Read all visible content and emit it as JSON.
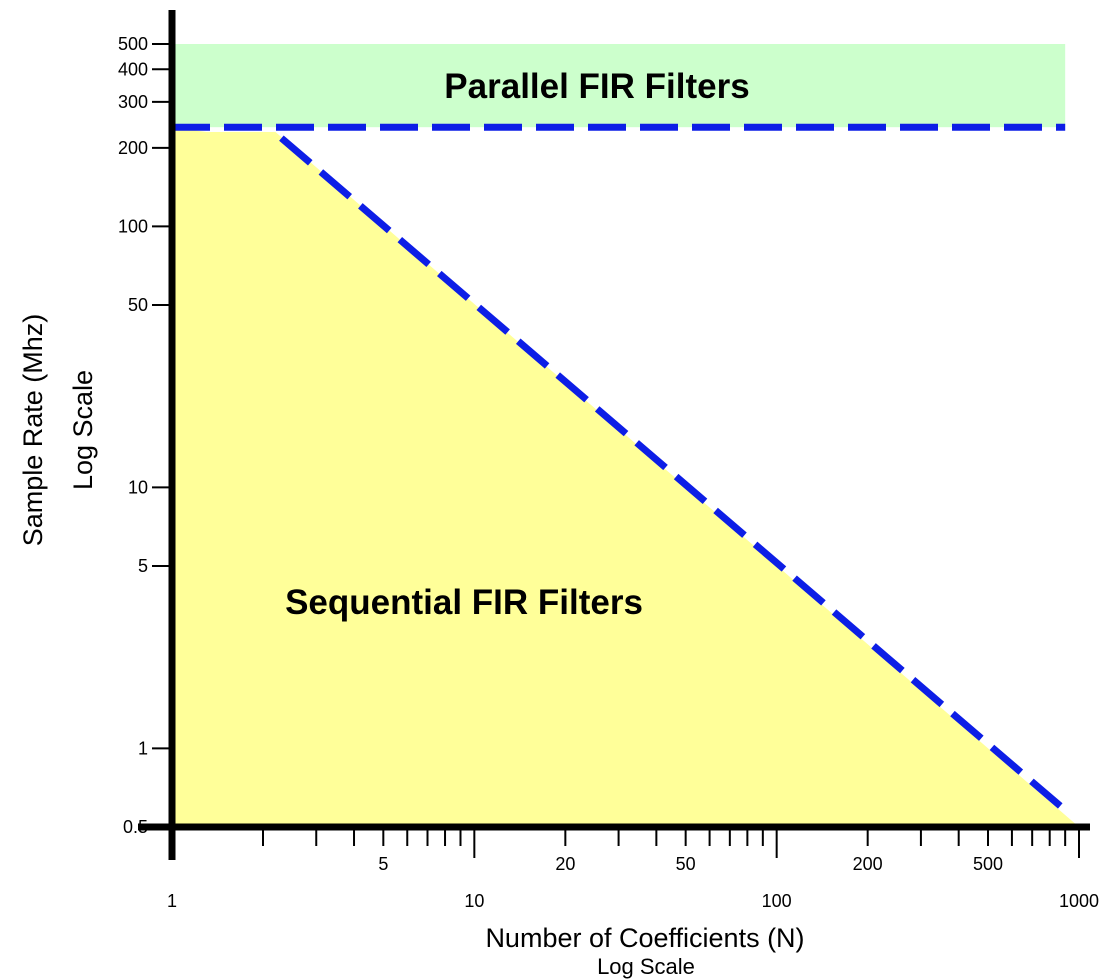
{
  "chart_data": {
    "type": "area",
    "x_scale": "log",
    "y_scale": "log",
    "xlim": [
      1,
      1000
    ],
    "ylim": [
      0.5,
      500
    ],
    "xlabel": "Number of Coefficients (N)",
    "xlabel_sub": "Log Scale",
    "ylabel": "Sample Rate (Mhz)",
    "ylabel_sub": "Log Scale",
    "x_tick_labels": [
      {
        "value": 1,
        "label": "1",
        "row": "lower"
      },
      {
        "value": 5,
        "label": "5",
        "row": "upper"
      },
      {
        "value": 10,
        "label": "10",
        "row": "lower"
      },
      {
        "value": 20,
        "label": "20",
        "row": "upper"
      },
      {
        "value": 50,
        "label": "50",
        "row": "upper"
      },
      {
        "value": 100,
        "label": "100",
        "row": "lower"
      },
      {
        "value": 200,
        "label": "200",
        "row": "upper"
      },
      {
        "value": 500,
        "label": "500",
        "row": "upper"
      },
      {
        "value": 1000,
        "label": "1000",
        "row": "lower"
      }
    ],
    "x_major_ticks": [
      10,
      100,
      1000
    ],
    "x_minor_ticks": [
      2,
      3,
      4,
      5,
      6,
      7,
      8,
      9,
      20,
      30,
      40,
      50,
      60,
      70,
      80,
      90,
      200,
      300,
      400,
      500,
      600,
      700,
      800,
      900
    ],
    "y_tick_labels": [
      {
        "value": 0.5,
        "label": "0.5"
      },
      {
        "value": 1,
        "label": "1"
      },
      {
        "value": 5,
        "label": "5"
      },
      {
        "value": 10,
        "label": "10"
      },
      {
        "value": 50,
        "label": "50"
      },
      {
        "value": 100,
        "label": "100"
      },
      {
        "value": 200,
        "label": "200"
      },
      {
        "value": 300,
        "label": "300"
      },
      {
        "value": 400,
        "label": "400"
      },
      {
        "value": 500,
        "label": "500"
      }
    ],
    "regions": [
      {
        "name": "Parallel FIR Filters",
        "color": "#ccffcc",
        "x_range": [
          1,
          900
        ],
        "y_range": [
          240,
          500
        ]
      },
      {
        "name": "Sequential FIR Filters",
        "color": "#ffff99",
        "boundary": [
          {
            "x": 1,
            "y": 0.5
          },
          {
            "x": 1,
            "y": 240
          },
          {
            "x": 1.3,
            "y": 230
          },
          {
            "x": 2.2,
            "y": 230
          },
          {
            "x": 1000,
            "y": 0.5
          }
        ]
      }
    ],
    "series": [
      {
        "style": "dashed",
        "color": "#0d1ee6",
        "x": [
          1,
          900
        ],
        "y": [
          240,
          240
        ]
      },
      {
        "style": "dashed",
        "color": "#0d1ee6",
        "x": [
          2.3,
          900
        ],
        "y": [
          218,
          0.58
        ]
      }
    ],
    "grid": false
  }
}
